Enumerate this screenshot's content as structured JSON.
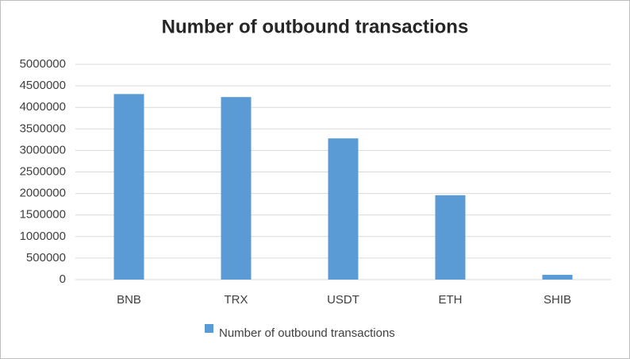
{
  "chart_data": {
    "type": "bar",
    "title": "Number of outbound transactions",
    "categories": [
      "BNB",
      "TRX",
      "USDT",
      "ETH",
      "SHIB"
    ],
    "series": [
      {
        "name": "Number of outbound transactions",
        "color": "#5b9bd5",
        "values": [
          4310000,
          4240000,
          3280000,
          1960000,
          110000
        ]
      }
    ],
    "ylim": [
      0,
      5000000
    ],
    "yticks": [
      0,
      500000,
      1000000,
      1500000,
      2000000,
      2500000,
      3000000,
      3500000,
      4000000,
      4500000,
      5000000
    ],
    "grid": true,
    "legend": "bottom"
  }
}
